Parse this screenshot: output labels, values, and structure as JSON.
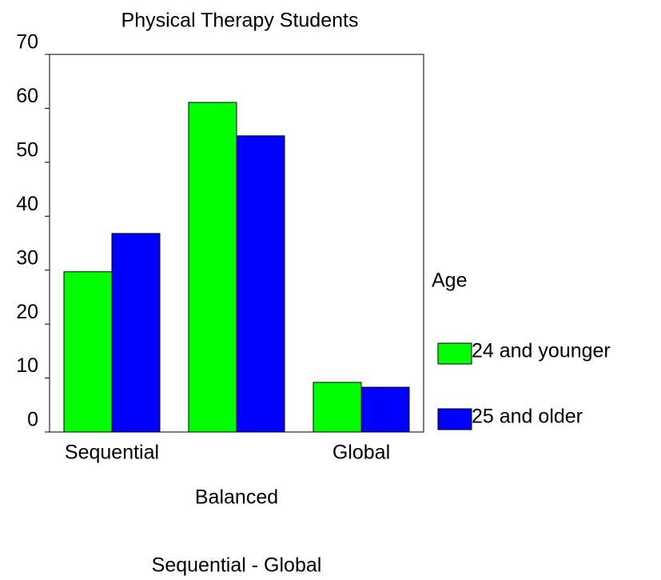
{
  "chart_data": {
    "type": "bar",
    "title": "Physical Therapy Students",
    "x_label": "Sequential - Global",
    "categories": [
      "Sequential",
      "Balanced",
      "Global"
    ],
    "series": [
      {
        "name": "24 and younger",
        "color": "#00ff00",
        "values": [
          29.7,
          61.1,
          9.2
        ]
      },
      {
        "name": "25 and older",
        "color": "#0000ff",
        "values": [
          36.8,
          54.9,
          8.3
        ]
      }
    ],
    "legend_title": "Age",
    "ylim": [
      0,
      70
    ],
    "yticks": [
      0,
      10,
      20,
      30,
      40,
      50,
      60,
      70
    ]
  }
}
